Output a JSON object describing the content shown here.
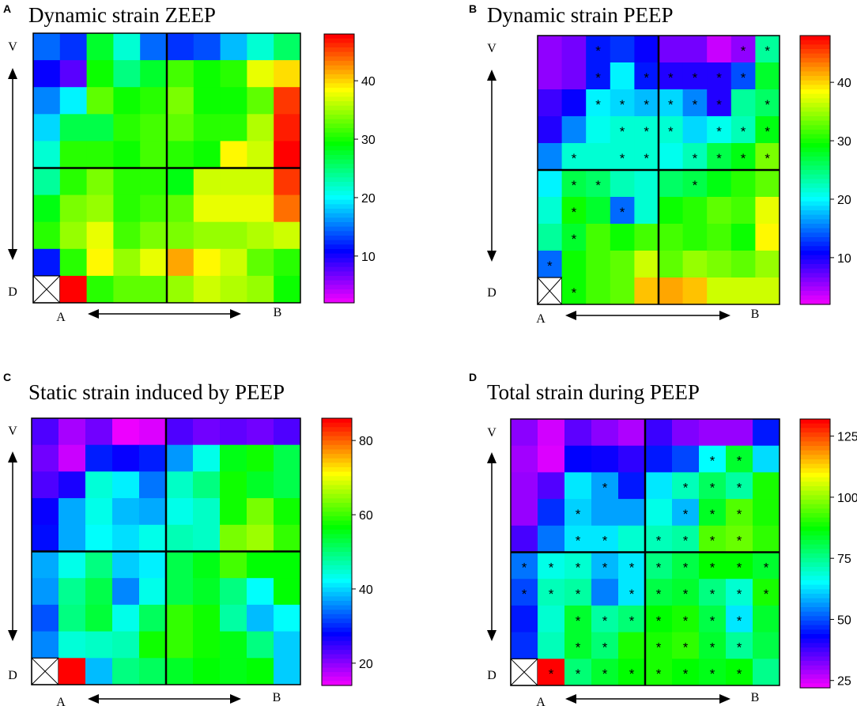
{
  "figure": {
    "orientation_labels": {
      "ventral": "V",
      "dorsal": "D",
      "left": "A",
      "right": "B"
    }
  },
  "chart_data": [
    {
      "type": "heatmap",
      "panel_label": "A",
      "title": "Dynamic strain ZEEP",
      "rows": 10,
      "cols": 10,
      "colorbar": {
        "min": 2,
        "max": 48,
        "ticks": [
          10,
          20,
          30,
          40
        ]
      },
      "values": [
        [
          15,
          13,
          28,
          22,
          15,
          13,
          14,
          18,
          22,
          26
        ],
        [
          11,
          8,
          30,
          25,
          28,
          32,
          30,
          31,
          38,
          40
        ],
        [
          16,
          20,
          33,
          30,
          31,
          34,
          30,
          30,
          33,
          46
        ],
        [
          19,
          27,
          27,
          31,
          32,
          33,
          31,
          31,
          36,
          47
        ],
        [
          22,
          31,
          31,
          30,
          32,
          31,
          30,
          39,
          37,
          48
        ],
        [
          24,
          31,
          34,
          31,
          31,
          29,
          37,
          37,
          37,
          46
        ],
        [
          29,
          34,
          35,
          31,
          32,
          33,
          38,
          38,
          38,
          44
        ],
        [
          31,
          35,
          38,
          32,
          34,
          34,
          35,
          35,
          36,
          37
        ],
        [
          12,
          31,
          39,
          35,
          38,
          42,
          39,
          37,
          33,
          31
        ],
        [
          null,
          48,
          31,
          33,
          33,
          35,
          37,
          36,
          35,
          30
        ]
      ],
      "stars": []
    },
    {
      "type": "heatmap",
      "panel_label": "B",
      "title": "Dynamic strain PEEP",
      "rows": 10,
      "cols": 10,
      "colorbar": {
        "min": 2,
        "max": 48,
        "ticks": [
          10,
          20,
          30,
          40
        ]
      },
      "values": [
        [
          6,
          7,
          12,
          13,
          11,
          7,
          7,
          4,
          6,
          24
        ],
        [
          6,
          7,
          12,
          20,
          12,
          10,
          10,
          10,
          14,
          28
        ],
        [
          9,
          11,
          20,
          19,
          18,
          19,
          16,
          10,
          24,
          26
        ],
        [
          10,
          16,
          21,
          22,
          22,
          22,
          19,
          21,
          23,
          29
        ],
        [
          16,
          22,
          22,
          22,
          22,
          21,
          23,
          27,
          29,
          34
        ],
        [
          20,
          27,
          26,
          23,
          22,
          26,
          27,
          29,
          31,
          33
        ],
        [
          22,
          30,
          28,
          15,
          22,
          30,
          31,
          33,
          32,
          38
        ],
        [
          24,
          28,
          32,
          30,
          32,
          32,
          31,
          32,
          30,
          39
        ],
        [
          15,
          30,
          32,
          33,
          37,
          33,
          35,
          34,
          33,
          35
        ],
        [
          null,
          30,
          32,
          33,
          41,
          42,
          41,
          37,
          37,
          37
        ]
      ],
      "stars": [
        [
          0,
          2
        ],
        [
          0,
          8
        ],
        [
          0,
          9
        ],
        [
          1,
          2
        ],
        [
          1,
          4
        ],
        [
          1,
          5
        ],
        [
          1,
          6
        ],
        [
          1,
          7
        ],
        [
          1,
          8
        ],
        [
          2,
          2
        ],
        [
          2,
          3
        ],
        [
          2,
          4
        ],
        [
          2,
          5
        ],
        [
          2,
          6
        ],
        [
          2,
          7
        ],
        [
          2,
          9
        ],
        [
          3,
          3
        ],
        [
          3,
          4
        ],
        [
          3,
          5
        ],
        [
          3,
          7
        ],
        [
          3,
          8
        ],
        [
          3,
          9
        ],
        [
          4,
          1
        ],
        [
          4,
          3
        ],
        [
          4,
          4
        ],
        [
          4,
          6
        ],
        [
          4,
          7
        ],
        [
          4,
          8
        ],
        [
          4,
          9
        ],
        [
          5,
          1
        ],
        [
          5,
          2
        ],
        [
          5,
          6
        ],
        [
          6,
          1
        ],
        [
          6,
          3
        ],
        [
          7,
          1
        ],
        [
          8,
          0
        ],
        [
          9,
          1
        ]
      ]
    },
    {
      "type": "heatmap",
      "panel_label": "C",
      "title": "Static strain induced by PEEP",
      "rows": 10,
      "cols": 10,
      "colorbar": {
        "min": 14,
        "max": 86,
        "ticks": [
          20,
          40,
          60,
          80
        ]
      },
      "values": [
        [
          24,
          19,
          22,
          15,
          16,
          24,
          22,
          23,
          22,
          24
        ],
        [
          22,
          17,
          30,
          28,
          30,
          37,
          44,
          56,
          58,
          53
        ],
        [
          24,
          27,
          45,
          42,
          35,
          46,
          50,
          58,
          55,
          53
        ],
        [
          28,
          38,
          44,
          39,
          38,
          44,
          46,
          58,
          64,
          58
        ],
        [
          29,
          38,
          43,
          41,
          44,
          47,
          46,
          64,
          66,
          60
        ],
        [
          38,
          44,
          50,
          40,
          42,
          53,
          56,
          61,
          57,
          57
        ],
        [
          37,
          49,
          53,
          36,
          44,
          53,
          55,
          50,
          43,
          57
        ],
        [
          33,
          50,
          54,
          44,
          52,
          60,
          58,
          48,
          39,
          43
        ],
        [
          36,
          45,
          46,
          47,
          58,
          60,
          58,
          56,
          50,
          40
        ],
        [
          null,
          86,
          39,
          50,
          52,
          55,
          57,
          56,
          57,
          40
        ]
      ],
      "stars": []
    },
    {
      "type": "heatmap",
      "panel_label": "D",
      "title": "Total strain during PEEP",
      "rows": 10,
      "cols": 10,
      "colorbar": {
        "min": 22,
        "max": 132,
        "ticks": [
          25,
          50,
          75,
          100,
          125
        ]
      },
      "values": [
        [
          32,
          26,
          36,
          32,
          29,
          39,
          33,
          31,
          31,
          46
        ],
        [
          30,
          25,
          44,
          43,
          40,
          46,
          50,
          66,
          84,
          63
        ],
        [
          31,
          37,
          64,
          58,
          46,
          64,
          72,
          80,
          74,
          90
        ],
        [
          31,
          48,
          62,
          58,
          58,
          68,
          60,
          85,
          95,
          90
        ],
        [
          38,
          54,
          64,
          64,
          70,
          72,
          74,
          95,
          97,
          92
        ],
        [
          54,
          68,
          70,
          60,
          64,
          77,
          82,
          88,
          88,
          84
        ],
        [
          50,
          72,
          74,
          55,
          64,
          82,
          84,
          77,
          70,
          90
        ],
        [
          46,
          70,
          84,
          74,
          78,
          88,
          90,
          82,
          64,
          84
        ],
        [
          48,
          72,
          84,
          78,
          90,
          90,
          92,
          84,
          75,
          82
        ],
        [
          null,
          132,
          78,
          84,
          88,
          90,
          88,
          86,
          88,
          76
        ]
      ],
      "stars": [
        [
          1,
          7
        ],
        [
          1,
          8
        ],
        [
          2,
          3
        ],
        [
          2,
          6
        ],
        [
          2,
          7
        ],
        [
          2,
          8
        ],
        [
          3,
          2
        ],
        [
          3,
          6
        ],
        [
          3,
          7
        ],
        [
          3,
          8
        ],
        [
          4,
          2
        ],
        [
          4,
          3
        ],
        [
          4,
          5
        ],
        [
          4,
          6
        ],
        [
          4,
          7
        ],
        [
          4,
          8
        ],
        [
          5,
          0
        ],
        [
          5,
          1
        ],
        [
          5,
          2
        ],
        [
          5,
          3
        ],
        [
          5,
          4
        ],
        [
          5,
          5
        ],
        [
          5,
          6
        ],
        [
          5,
          7
        ],
        [
          5,
          8
        ],
        [
          5,
          9
        ],
        [
          6,
          0
        ],
        [
          6,
          1
        ],
        [
          6,
          2
        ],
        [
          6,
          4
        ],
        [
          6,
          5
        ],
        [
          6,
          6
        ],
        [
          6,
          7
        ],
        [
          6,
          8
        ],
        [
          6,
          9
        ],
        [
          7,
          2
        ],
        [
          7,
          3
        ],
        [
          7,
          4
        ],
        [
          7,
          5
        ],
        [
          7,
          6
        ],
        [
          7,
          7
        ],
        [
          7,
          8
        ],
        [
          8,
          2
        ],
        [
          8,
          3
        ],
        [
          8,
          5
        ],
        [
          8,
          6
        ],
        [
          8,
          7
        ],
        [
          8,
          8
        ],
        [
          9,
          1
        ],
        [
          9,
          2
        ],
        [
          9,
          3
        ],
        [
          9,
          4
        ],
        [
          9,
          5
        ],
        [
          9,
          6
        ],
        [
          9,
          7
        ],
        [
          9,
          8
        ]
      ]
    }
  ]
}
